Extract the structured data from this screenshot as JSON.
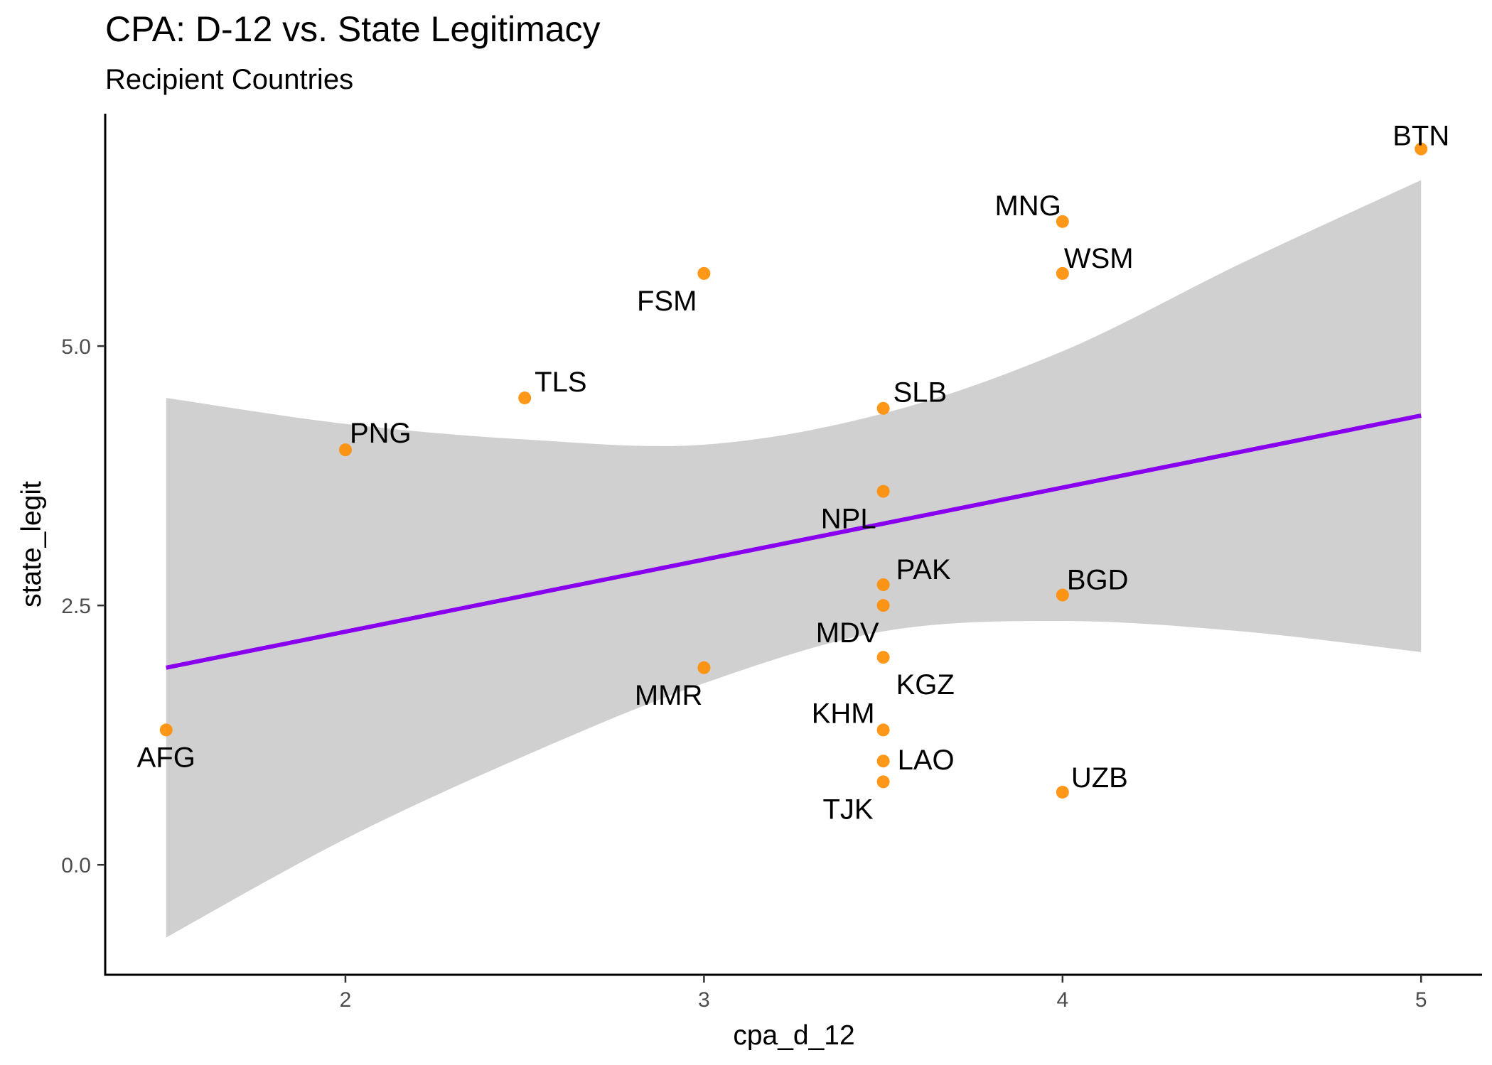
{
  "chart_data": {
    "type": "scatter",
    "title": "CPA: D-12 vs. State Legitimacy",
    "subtitle": "Recipient Countries",
    "xlabel": "cpa_d_12",
    "ylabel": "state_legit",
    "xlim": [
      1.33,
      5.17
    ],
    "ylim": [
      -1.06,
      7.24
    ],
    "x_ticks": [
      2,
      3,
      4,
      5
    ],
    "x_tick_labels": [
      "2",
      "3",
      "4",
      "5"
    ],
    "y_ticks": [
      0,
      2.5,
      5
    ],
    "y_tick_labels": [
      "0.0",
      "2.5",
      "5.0"
    ],
    "grid": false,
    "legend": "none",
    "colors": {
      "point": "#ff8c00",
      "fit_line": "#8800ee",
      "ribbon": "#c8c8c8"
    },
    "points": [
      {
        "label": "AFG",
        "x": 1.5,
        "y": 1.3
      },
      {
        "label": "PNG",
        "x": 2.0,
        "y": 4.0
      },
      {
        "label": "TLS",
        "x": 2.5,
        "y": 4.5
      },
      {
        "label": "FSM",
        "x": 3.0,
        "y": 5.7
      },
      {
        "label": "MMR",
        "x": 3.0,
        "y": 1.9
      },
      {
        "label": "SLB",
        "x": 3.5,
        "y": 4.4
      },
      {
        "label": "NPL",
        "x": 3.5,
        "y": 3.6
      },
      {
        "label": "PAK",
        "x": 3.5,
        "y": 2.7
      },
      {
        "label": "MDV",
        "x": 3.5,
        "y": 2.5
      },
      {
        "label": "KGZ",
        "x": 3.5,
        "y": 2.0
      },
      {
        "label": "KHM",
        "x": 3.5,
        "y": 1.3
      },
      {
        "label": "LAO",
        "x": 3.5,
        "y": 1.0
      },
      {
        "label": "TJK",
        "x": 3.5,
        "y": 0.8
      },
      {
        "label": "MNG",
        "x": 4.0,
        "y": 6.2
      },
      {
        "label": "WSM",
        "x": 4.0,
        "y": 5.7
      },
      {
        "label": "BGD",
        "x": 4.0,
        "y": 2.6
      },
      {
        "label": "UZB",
        "x": 4.0,
        "y": 0.7
      },
      {
        "label": "BTN",
        "x": 5.0,
        "y": 6.9
      }
    ],
    "fit_line": {
      "x": [
        1.5,
        5.0
      ],
      "y": [
        1.9,
        4.33
      ]
    },
    "confidence_band": {
      "x": [
        1.5,
        2.0,
        2.5,
        3.0,
        3.5,
        4.0,
        4.5,
        5.0
      ],
      "lower": [
        -0.7,
        0.25,
        1.05,
        1.75,
        2.25,
        2.35,
        2.25,
        2.05
      ],
      "upper": [
        4.5,
        4.25,
        4.1,
        4.05,
        4.35,
        4.95,
        5.8,
        6.6
      ]
    }
  }
}
